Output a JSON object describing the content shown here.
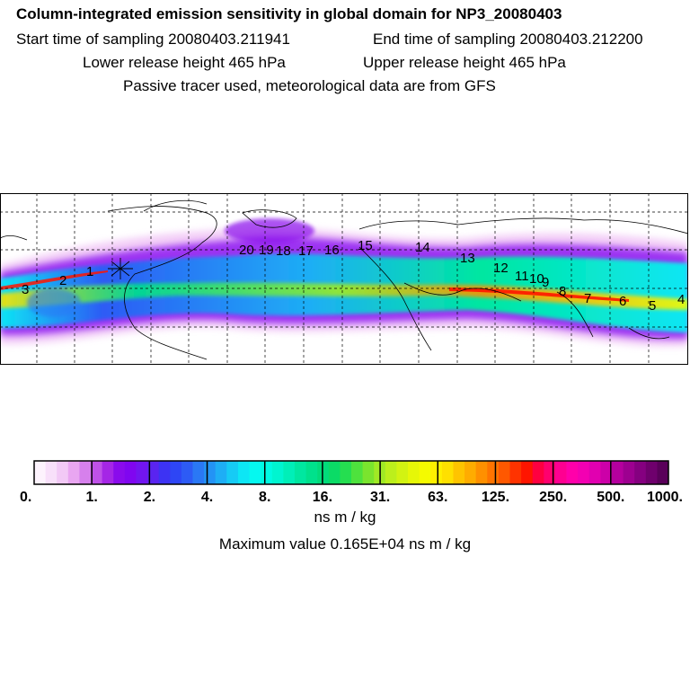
{
  "header": {
    "title": "Column-integrated emission sensitivity in global domain for NP3_20080403",
    "start_time": "Start time of sampling 20080403.211941",
    "end_time": "End time of sampling 20080403.212200",
    "lower_height": "Lower release height  465 hPa",
    "upper_height": "Upper release height  465 hPa",
    "tracer_note": "Passive tracer used, meteorological data are from GFS"
  },
  "map": {
    "trajectory_labels": [
      "1",
      "2",
      "3",
      "4",
      "5",
      "6",
      "7",
      "8",
      "9",
      "10",
      "11",
      "12",
      "13",
      "14",
      "15",
      "16",
      "17",
      "18",
      "19",
      "20"
    ]
  },
  "colorbar": {
    "tick_labels": [
      "0.",
      "1.",
      "2.",
      "4.",
      "8.",
      "16.",
      "31.",
      "63.",
      "125.",
      "250.",
      "500.",
      "1000."
    ],
    "colors": [
      "#fdf3fd",
      "#f8e0fa",
      "#f2c9f6",
      "#e9a6f1",
      "#d680ec",
      "#bf51e8",
      "#a526e6",
      "#8a0bec",
      "#8006f0",
      "#7215f0",
      "#5a24f0",
      "#3d33f3",
      "#2e46f5",
      "#2d5bf5",
      "#2a78f5",
      "#2393f5",
      "#1eaef5",
      "#16cbf5",
      "#0de6f5",
      "#05f8f0",
      "#00fae3",
      "#00f5d0",
      "#00efb8",
      "#00e7a0",
      "#00e18c",
      "#02db7a",
      "#0bdb66",
      "#25de50",
      "#4ee23d",
      "#7ae42e",
      "#a0e925",
      "#bcef1c",
      "#d2f312",
      "#e6f707",
      "#f5fb00",
      "#fff000",
      "#ffe000",
      "#ffc400",
      "#ffac00",
      "#ff9000",
      "#ff7400",
      "#ff5800",
      "#ff3300",
      "#ff1500",
      "#ff0040",
      "#ff006e",
      "#ff0091",
      "#ff00aa",
      "#f300b2",
      "#e100b0",
      "#cc00a8",
      "#b5009e",
      "#9d0090",
      "#850080",
      "#6f006d",
      "#5a005a"
    ],
    "units": "ns m / kg",
    "max_value": "Maximum value  0.165E+04 ns m / kg"
  }
}
